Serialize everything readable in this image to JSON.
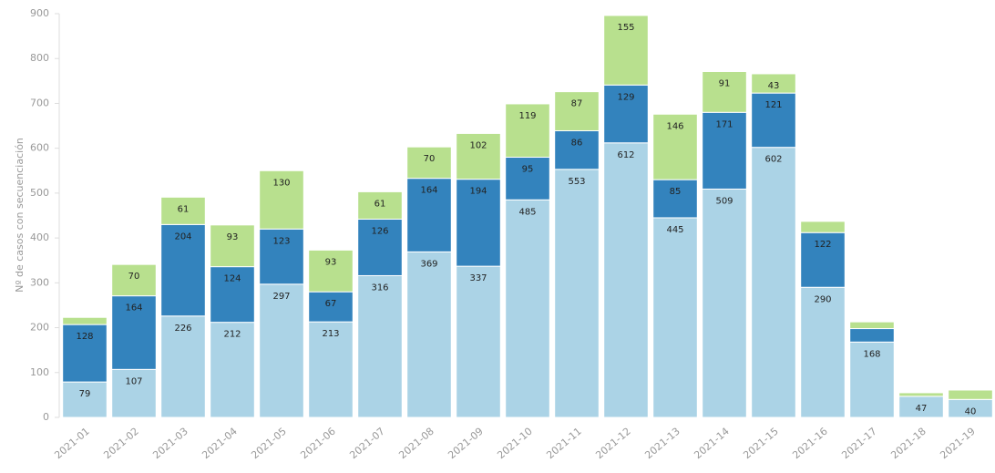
{
  "chart_data": {
    "type": "stacked_bar",
    "y_label": "Nº de casos con secuenciación",
    "categories": [
      "2021-01",
      "2021-02",
      "2021-03",
      "2021-04",
      "2021-05",
      "2021-06",
      "2021-07",
      "2021-08",
      "2021-09",
      "2021-10",
      "2021-11",
      "2021-12",
      "2021-13",
      "2021-14",
      "2021-15",
      "2021-16",
      "2021-17",
      "2021-18",
      "2021-19"
    ],
    "series": [
      {
        "color": "#abd3e6",
        "values": [
          79,
          107,
          226,
          212,
          297,
          213,
          316,
          369,
          337,
          485,
          553,
          612,
          445,
          509,
          602,
          290,
          168,
          47,
          40
        ],
        "value_labels": [
          "79",
          "107",
          "226",
          "212",
          "297",
          "213",
          "316",
          "369",
          "337",
          "485",
          "553",
          "612",
          "445",
          "509",
          "602",
          "290",
          "168",
          "47",
          "40"
        ]
      },
      {
        "color": "#3383bd",
        "values": [
          128,
          164,
          204,
          124,
          123,
          67,
          126,
          164,
          194,
          95,
          86,
          129,
          85,
          171,
          121,
          122,
          30,
          null,
          null
        ],
        "value_labels": [
          "128",
          "164",
          "204",
          "124",
          "123",
          "67",
          "126",
          "164",
          "194",
          "95",
          "86",
          "129",
          "85",
          "171",
          "121",
          "122",
          null,
          null,
          null
        ]
      },
      {
        "color": "#b8e08e",
        "values": [
          16,
          70,
          61,
          93,
          130,
          93,
          61,
          70,
          102,
          119,
          87,
          155,
          146,
          91,
          43,
          25,
          15,
          8,
          21
        ],
        "value_labels": [
          null,
          "70",
          "61",
          "93",
          "130",
          "93",
          "61",
          "70",
          "102",
          "119",
          "87",
          "155",
          "146",
          "91",
          "43",
          null,
          null,
          null,
          null
        ]
      }
    ],
    "ylim": [
      0,
      900
    ],
    "yticks": [
      0,
      100,
      200,
      300,
      400,
      500,
      600,
      700,
      800,
      900
    ]
  }
}
